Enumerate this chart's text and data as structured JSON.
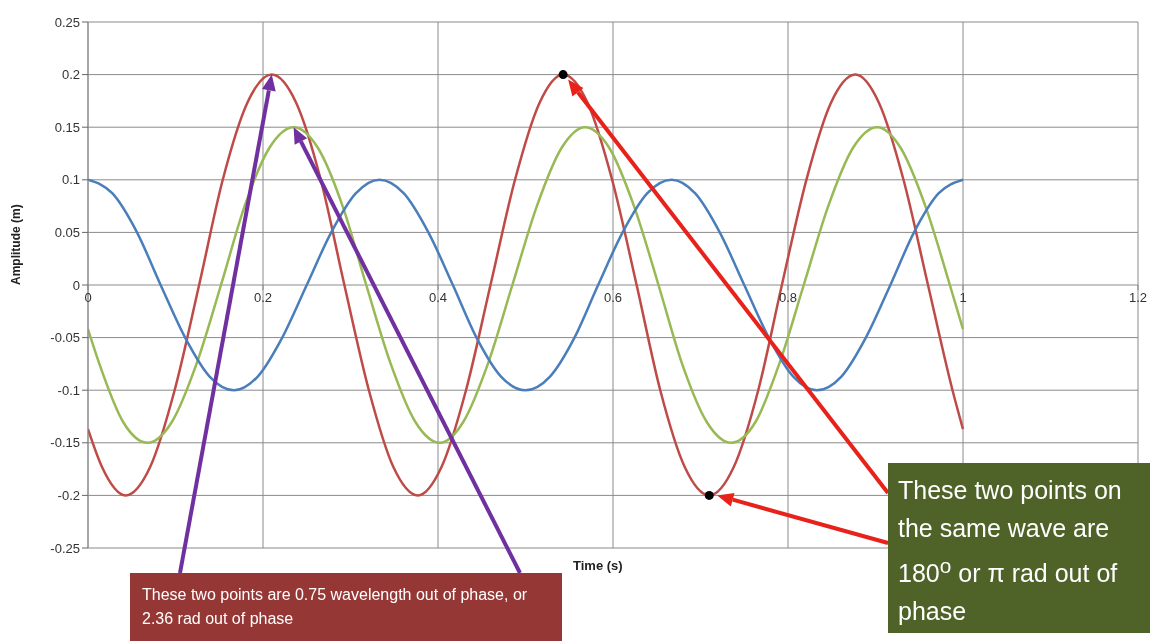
{
  "chart_data": {
    "type": "line",
    "xlabel": "Time (s)",
    "ylabel": "Amplitude (m)",
    "xlim": [
      0,
      1.2
    ],
    "xticks": [
      0,
      0.2,
      0.4,
      0.6,
      0.8,
      1,
      1.2
    ],
    "ylim": [
      -0.25,
      0.25
    ],
    "yticks": [
      -0.25,
      -0.2,
      -0.15,
      -0.1,
      -0.05,
      0,
      0.05,
      0.1,
      0.15,
      0.2,
      0.25
    ],
    "grid": true,
    "marker": "none",
    "annotations": [
      "These two points are 0.75 wavelength out of phase, or 2.36 rad out of phase",
      "These two points on the same wave are 180$^{o}$ or π rad out of phase"
    ],
    "series": [
      {
        "color": "#be4b48",
        "x": [
          0,
          0.016,
          0.043,
          0.071,
          0.099,
          0.127,
          0.154,
          0.182,
          0.21,
          0.238,
          0.266,
          0.293,
          0.321,
          0.349,
          0.377,
          0.404,
          0.432,
          0.46,
          0.488,
          0.516,
          0.543,
          0.571,
          0.599,
          0.627,
          0.654,
          0.682,
          0.71,
          0.738,
          0.766,
          0.793,
          0.821,
          0.849,
          0.877,
          0.904,
          0.932,
          0.96,
          0.988,
          1
        ],
        "values": [
          -0.137,
          -0.173,
          -0.2,
          -0.173,
          -0.1,
          0,
          0.1,
          0.173,
          0.2,
          0.173,
          0.1,
          0,
          -0.1,
          -0.173,
          -0.2,
          -0.173,
          -0.1,
          0,
          0.1,
          0.173,
          0.2,
          0.173,
          0.1,
          0,
          -0.1,
          -0.173,
          -0.2,
          -0.173,
          -0.1,
          0,
          0.1,
          0.173,
          0.2,
          0.173,
          0.1,
          0,
          -0.1,
          -0.137
        ]
      },
      {
        "color": "#98b954",
        "x": [
          0,
          0.013,
          0.04,
          0.068,
          0.096,
          0.124,
          0.152,
          0.179,
          0.207,
          0.235,
          0.263,
          0.291,
          0.318,
          0.346,
          0.374,
          0.402,
          0.429,
          0.457,
          0.485,
          0.513,
          0.541,
          0.568,
          0.596,
          0.624,
          0.652,
          0.679,
          0.707,
          0.735,
          0.763,
          0.79,
          0.818,
          0.846,
          0.874,
          0.902,
          0.929,
          0.957,
          0.985,
          1
        ],
        "values": [
          -0.042,
          -0.075,
          -0.13,
          -0.15,
          -0.13,
          -0.075,
          0,
          0.075,
          0.13,
          0.15,
          0.13,
          0.075,
          0,
          -0.075,
          -0.13,
          -0.15,
          -0.13,
          -0.075,
          0,
          0.075,
          0.13,
          0.15,
          0.13,
          0.075,
          0,
          -0.075,
          -0.13,
          -0.15,
          -0.13,
          -0.075,
          0,
          0.075,
          0.13,
          0.15,
          0.13,
          0.075,
          0,
          -0.042
        ]
      },
      {
        "color": "#4a7ebb",
        "x": [
          0,
          0.028,
          0.056,
          0.083,
          0.111,
          0.139,
          0.167,
          0.194,
          0.222,
          0.25,
          0.278,
          0.306,
          0.333,
          0.361,
          0.389,
          0.417,
          0.444,
          0.472,
          0.5,
          0.528,
          0.556,
          0.583,
          0.611,
          0.639,
          0.667,
          0.694,
          0.722,
          0.75,
          0.778,
          0.806,
          0.833,
          0.861,
          0.889,
          0.917,
          0.944,
          0.972,
          1
        ],
        "values": [
          0.1,
          0.087,
          0.05,
          0,
          -0.05,
          -0.087,
          -0.1,
          -0.087,
          -0.05,
          0,
          0.05,
          0.087,
          0.1,
          0.087,
          0.05,
          0,
          -0.05,
          -0.087,
          -0.1,
          -0.087,
          -0.05,
          0,
          0.05,
          0.087,
          0.1,
          0.087,
          0.05,
          0,
          -0.05,
          -0.087,
          -0.1,
          -0.087,
          -0.05,
          0,
          0.05,
          0.087,
          0.1
        ]
      },
      {
        "type": "scatter",
        "marker": "circle",
        "color": "#000000",
        "x": [
          0.543,
          0.71
        ],
        "values": [
          0.2,
          -0.2
        ]
      }
    ]
  }
}
